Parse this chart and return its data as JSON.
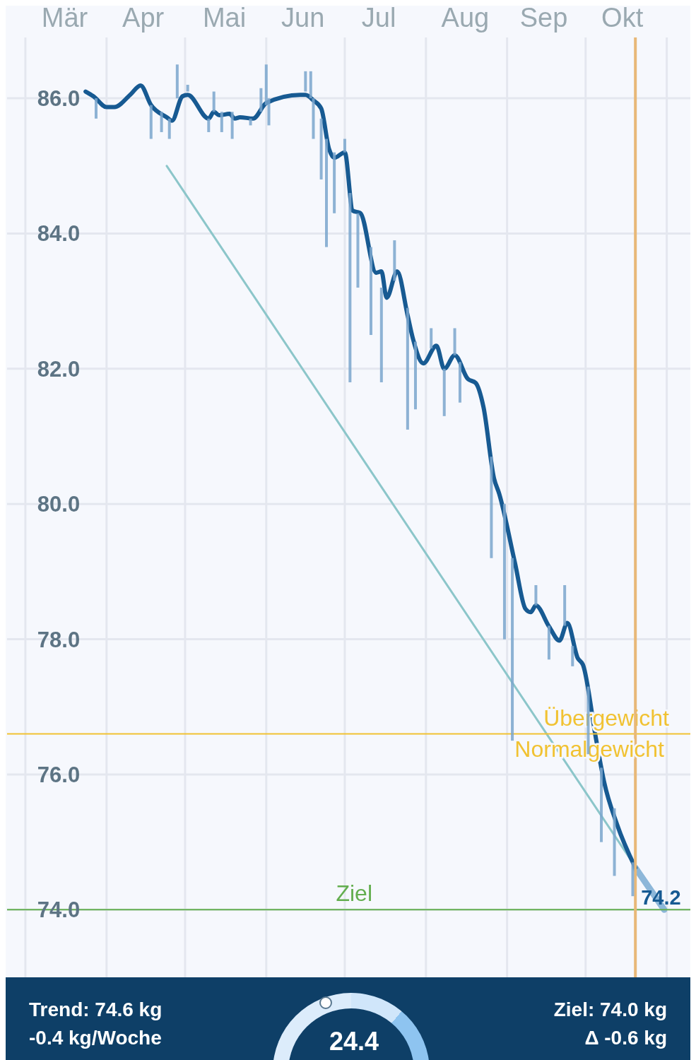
{
  "chart_data": {
    "type": "line",
    "xlim": [
      "--02-22",
      "--11-10"
    ],
    "xticks": [
      {
        "value": "--03-01",
        "label": null
      },
      {
        "value": "--03-16",
        "label": "Mär"
      },
      {
        "value": "--04-01",
        "label": null
      },
      {
        "value": "--04-15",
        "label": "Apr"
      },
      {
        "value": "--05-01",
        "label": null
      },
      {
        "value": "--05-16",
        "label": "Mai"
      },
      {
        "value": "--06-01",
        "label": null
      },
      {
        "value": "--06-15",
        "label": "Jun"
      },
      {
        "value": "--07-01",
        "label": null
      },
      {
        "value": "--07-14",
        "label": "Jul"
      },
      {
        "value": "--08-01",
        "label": null
      },
      {
        "value": "--08-16",
        "label": "Aug"
      },
      {
        "value": "--09-01",
        "label": null
      },
      {
        "value": "--09-15",
        "label": "Sep"
      },
      {
        "value": "--10-01",
        "label": null
      },
      {
        "value": "--10-15",
        "label": "Okt"
      },
      {
        "value": "--11-01",
        "label": null
      }
    ],
    "ylim": [
      73,
      86.9
    ],
    "yticks": [
      {
        "value": 74,
        "label": "74.0"
      },
      {
        "value": 76,
        "label": "76.0"
      },
      {
        "value": 78,
        "label": "78.0"
      },
      {
        "value": 80,
        "label": "80.0"
      },
      {
        "value": 82,
        "label": "82.0"
      },
      {
        "value": 84,
        "label": "84.0"
      },
      {
        "value": 86,
        "label": "86.0"
      }
    ],
    "grid": true,
    "series": [
      {
        "type": "bar",
        "color": "#7aa6cc",
        "x": [
          "--03-28",
          "--04-18",
          "--04-22",
          "--04-25",
          "--04-28",
          "--05-02",
          "--05-10",
          "--05-12",
          "--05-15",
          "--05-19",
          "--05-26",
          "--05-30",
          "--06-01",
          "--06-02",
          "--06-16",
          "--06-18",
          "--06-19",
          "--06-22",
          "--06-24",
          "--06-27",
          "--07-01",
          "--07-03",
          "--07-06",
          "--07-11",
          "--07-15",
          "--07-20",
          "--07-25",
          "--07-28",
          "--08-03",
          "--08-08",
          "--08-12",
          "--08-14",
          "--08-26",
          "--08-31",
          "--09-03",
          "--09-12",
          "--09-17",
          "--09-23",
          "--09-26",
          "--10-02",
          "--10-07",
          "--10-12",
          "--10-19"
        ],
        "base": [
          86.0,
          85.9,
          85.8,
          85.7,
          86.0,
          86.1,
          85.7,
          85.8,
          85.8,
          85.8,
          85.7,
          85.8,
          85.9,
          86.0,
          86.1,
          86.0,
          86.0,
          85.7,
          85.4,
          85.2,
          85.2,
          84.6,
          84.3,
          83.8,
          83.2,
          83.3,
          82.9,
          82.4,
          82.3,
          82.0,
          82.2,
          82.1,
          80.7,
          80.0,
          79.2,
          78.5,
          78.2,
          78.2,
          77.9,
          77.3,
          76.1,
          75.5,
          74.7
        ],
        "values": [
          -0.3,
          -0.5,
          -0.3,
          -0.3,
          0.5,
          0.1,
          -0.2,
          0.3,
          -0.3,
          -0.4,
          -0.1,
          0.35,
          0.6,
          -0.4,
          0.3,
          0.4,
          -0.6,
          -0.9,
          -1.6,
          -0.9,
          0.2,
          -2.8,
          -1.1,
          -1.3,
          -1.4,
          0.6,
          -1.8,
          -1.0,
          0.3,
          -0.7,
          0.4,
          -0.6,
          -1.5,
          -2.0,
          -2.7,
          0.3,
          -0.5,
          0.6,
          -0.3,
          -1.0,
          -1.1,
          -1.0,
          -0.5
        ]
      },
      {
        "color": "#8cc6ca",
        "x": [
          "--04-24",
          "--10-31"
        ],
        "values": [
          85.0,
          74.0
        ]
      },
      {
        "color": "#8db7d9",
        "x": [
          "--10-20",
          "--10-31"
        ],
        "values": [
          74.62,
          74.0
        ]
      },
      {
        "color": "#175a92",
        "x": [
          "--03-24",
          "--03-27",
          "--04-01",
          "--04-04",
          "--04-10",
          "--04-14",
          "--04-18",
          "--04-24",
          "--04-26",
          "--04-30",
          "--05-02",
          "--05-10",
          "--05-12",
          "--05-14",
          "--05-18",
          "--05-20",
          "--05-22",
          "--05-27",
          "--06-01",
          "--06-14",
          "--06-16",
          "--06-19",
          "--06-22",
          "--06-25",
          "--06-27",
          "--07-01",
          "--07-04",
          "--07-07",
          "--07-13",
          "--07-15",
          "--07-17",
          "--07-21",
          "--07-25",
          "--07-27",
          "--07-31",
          "--08-05",
          "--08-08",
          "--08-12",
          "--08-17",
          "--08-20",
          "--08-23",
          "--08-27",
          "--08-29",
          "--09-04",
          "--09-08",
          "--09-10",
          "--09-12",
          "--09-17",
          "--09-21",
          "--09-24",
          "--09-28",
          "--09-30",
          "--10-05",
          "--10-08",
          "--10-13",
          "--10-20"
        ],
        "values": [
          86.1,
          86.03,
          85.87,
          85.87,
          86.05,
          86.19,
          85.9,
          85.72,
          85.67,
          86.03,
          86.05,
          85.7,
          85.8,
          85.75,
          85.77,
          85.7,
          85.72,
          85.7,
          85.93,
          86.05,
          86.05,
          85.97,
          85.85,
          85.25,
          85.12,
          85.2,
          84.34,
          84.3,
          83.42,
          83.44,
          83.05,
          83.44,
          82.79,
          82.45,
          82.08,
          82.34,
          82.0,
          82.2,
          81.85,
          81.79,
          81.43,
          80.38,
          80.15,
          79.13,
          78.45,
          78.4,
          78.5,
          78.19,
          77.98,
          78.24,
          77.72,
          77.62,
          76.52,
          75.9,
          75.26,
          74.62
        ]
      }
    ],
    "ref_lines": [
      {
        "axis": "y",
        "value": 76.6,
        "label": "Übergewicht",
        "color": "#f1c232"
      },
      {
        "axis": "y",
        "value": 74.0,
        "label": "Ziel",
        "color": "#63ae4f"
      },
      {
        "axis": "x",
        "value": "--10-20",
        "color": "#e8b878"
      }
    ],
    "annotations": [
      {
        "text": "74.2",
        "x": "--10-20",
        "y": 74.2
      },
      {
        "text": "Normalgewicht",
        "x": "--10-31",
        "y": 76.6
      },
      "Trend: 74.6 kg",
      "-0.4 kg/Woche",
      "24.4",
      "Ziel: 74.0 kg",
      "Δ -0.6 kg"
    ]
  }
}
